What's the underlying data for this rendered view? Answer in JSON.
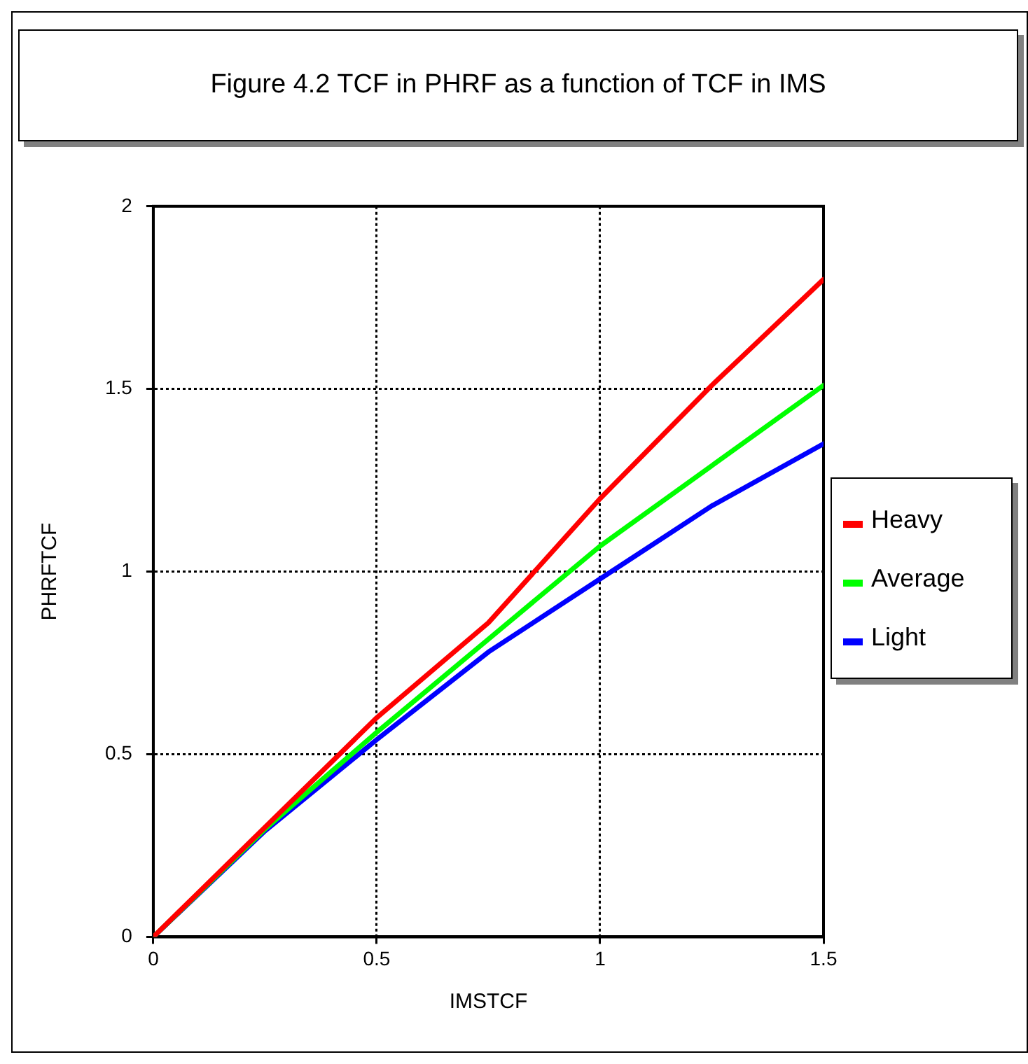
{
  "chart_data": {
    "type": "line",
    "title": "Figure 4.2 TCF in PHRF as a function of TCF in IMS",
    "xlabel": "IMSTCF",
    "ylabel": "PHRFTCF",
    "x": [
      0,
      0.25,
      0.5,
      0.75,
      1,
      1.25,
      1.5
    ],
    "series": [
      {
        "name": "Heavy",
        "color": "#ff0000",
        "values": [
          0,
          0.3,
          0.6,
          0.86,
          1.2,
          1.51,
          1.8
        ]
      },
      {
        "name": "Average",
        "color": "#00ff00",
        "values": [
          0,
          0.295,
          0.56,
          0.815,
          1.07,
          1.29,
          1.51
        ]
      },
      {
        "name": "Light",
        "color": "#0000ff",
        "values": [
          0,
          0.29,
          0.54,
          0.78,
          0.98,
          1.18,
          1.35
        ]
      }
    ],
    "xlim": [
      0,
      1.5
    ],
    "xticks": [
      0,
      0.5,
      1,
      1.5
    ],
    "ylim": [
      0,
      2
    ],
    "yticks": [
      0,
      0.5,
      1,
      1.5,
      2
    ],
    "grid": true,
    "legend": "right",
    "marker": "none",
    "line_style": "solid"
  }
}
